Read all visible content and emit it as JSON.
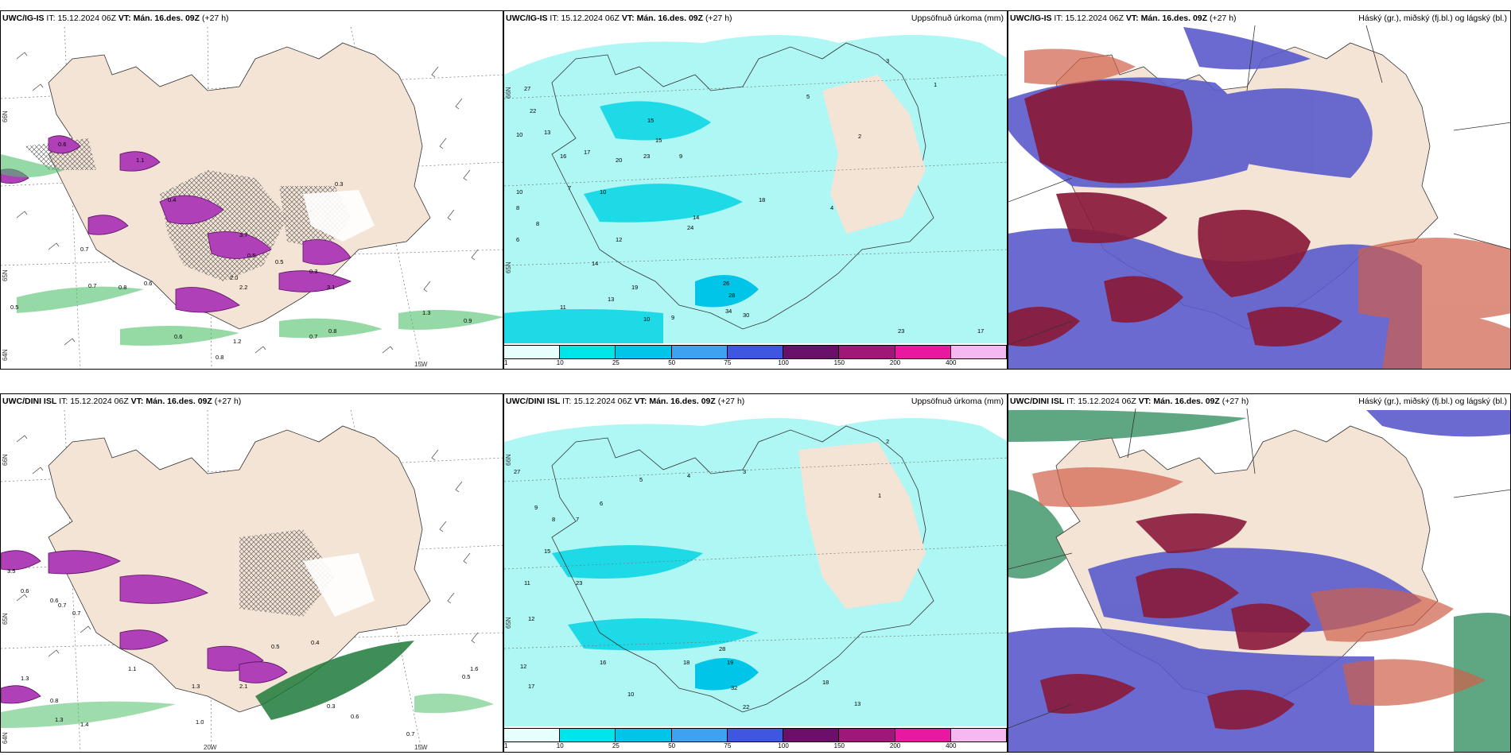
{
  "panels": [
    {
      "model": "UWC/IG-IS",
      "it_label": "IT:",
      "it_value": "15.12.2024 06Z",
      "vt_label": "VT:",
      "vt_value": "Mán. 16.des. 09Z",
      "lead": "(+27 h)",
      "right_title": "",
      "values": [
        "0.7",
        "0.5",
        "0.7",
        "0.8",
        "0.6",
        "0.6",
        "1.2",
        "0.8",
        "0.7",
        "0.8",
        "1.3",
        "0.9",
        "3.7",
        "0.5",
        "2.0",
        "2.2",
        "3.1",
        "0.6",
        "0.3",
        "1.1",
        "0.4",
        "0.5",
        "0.3"
      ],
      "lat_labels": [
        "66N",
        "65N",
        "64N"
      ],
      "lon_labels": [
        "15W"
      ]
    },
    {
      "model": "UWC/IG-IS",
      "it_label": "IT:",
      "it_value": "15.12.2024 06Z",
      "vt_label": "VT:",
      "vt_value": "Mán. 16.des. 09Z",
      "lead": "(+27 h)",
      "right_title": "Uppsöfnuð úrkoma (mm)",
      "values": [
        "27",
        "22",
        "10",
        "13",
        "16",
        "17",
        "20",
        "23",
        "15",
        "10",
        "8",
        "9",
        "7",
        "10",
        "8",
        "6",
        "12",
        "14",
        "19",
        "13",
        "11",
        "10",
        "9",
        "26",
        "28",
        "34",
        "30",
        "14",
        "15",
        "18",
        "24",
        "5",
        "4",
        "2",
        "3",
        "1",
        "23",
        "17"
      ],
      "lat_labels": [
        "66N",
        "65N"
      ],
      "lon_labels": []
    },
    {
      "model": "UWC/IG-IS",
      "it_label": "IT:",
      "it_value": "15.12.2024 06Z",
      "vt_label": "VT:",
      "vt_value": "Mán. 16.des. 09Z",
      "lead": "(+27 h)",
      "right_title": "Háský (gr.), miðský (fj.bl.) og lágský (bl.)",
      "values": [],
      "lat_labels": [],
      "lon_labels": []
    },
    {
      "model": "UWC/DINI ISL",
      "it_label": "IT:",
      "it_value": "15.12.2024 06Z",
      "vt_label": "VT:",
      "vt_value": "Mán. 16.des. 09Z",
      "lead": "(+27 h)",
      "right_title": "",
      "values": [
        "3.5",
        "0.6",
        "0.6",
        "0.7",
        "0.7",
        "1.3",
        "0.8",
        "1.3",
        "1.4",
        "1.1",
        "1.3",
        "2.1",
        "0.5",
        "0.3",
        "0.4",
        "1.0",
        "0.6",
        "0.7",
        "0.5",
        "1.6"
      ],
      "lat_labels": [
        "66N",
        "65N",
        "64N"
      ],
      "lon_labels": [
        "20W",
        "15W"
      ]
    },
    {
      "model": "UWC/DINI ISL",
      "it_label": "IT:",
      "it_value": "15.12.2024 06Z",
      "vt_label": "VT:",
      "vt_value": "Mán. 16.des. 09Z",
      "lead": "(+27 h)",
      "right_title": "Uppsöfnuð úrkoma (mm)",
      "values": [
        "27",
        "11",
        "12",
        "15",
        "16",
        "18",
        "17",
        "19",
        "23",
        "28",
        "32",
        "22",
        "10",
        "12",
        "13",
        "18",
        "9",
        "8",
        "7",
        "6",
        "5",
        "4",
        "3",
        "2",
        "1"
      ],
      "lat_labels": [
        "66N",
        "65N"
      ],
      "lon_labels": []
    },
    {
      "model": "UWC/DINI ISL",
      "it_label": "IT:",
      "it_value": "15.12.2024 06Z",
      "vt_label": "VT:",
      "vt_value": "Mán. 16.des. 09Z",
      "lead": "(+27 h)",
      "right_title": "Háský (gr.), miðský (fj.bl.) og lágský (bl.)",
      "values": [],
      "lat_labels": [],
      "lon_labels": []
    }
  ],
  "colorbar": {
    "labels": [
      "1",
      "10",
      "25",
      "50",
      "75",
      "100",
      "150",
      "200",
      "400"
    ],
    "colors": [
      "#e6fffd",
      "#00e5e8",
      "#00c4e8",
      "#3ea2f0",
      "#3f56e0",
      "#6a0f6a",
      "#a0177a",
      "#e818a0",
      "#f5b8f0"
    ]
  },
  "colors": {
    "land": "#f3e4d6",
    "precip_light": "#aef7f5",
    "precip_mid": "#1ed9e6",
    "snow_purple": "#b040b8",
    "green": "#4fc06a",
    "cloud_high": "#2a8a5a",
    "cloud_mid": "#5a5acc",
    "cloud_low": "#8a1a3a"
  }
}
